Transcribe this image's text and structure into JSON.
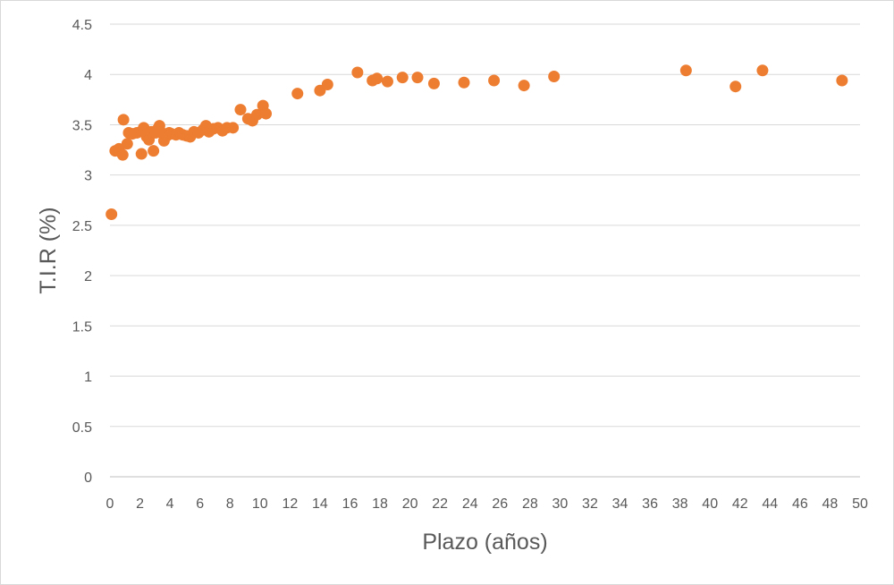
{
  "chart_data": {
    "type": "scatter",
    "xlabel": "Plazo (años)",
    "ylabel": "T.I.R (%)",
    "xlim": [
      0,
      50
    ],
    "ylim": [
      0,
      4.5
    ],
    "x_ticks": [
      "0",
      "2",
      "4",
      "6",
      "8",
      "10",
      "12",
      "14",
      "16",
      "18",
      "20",
      "22",
      "24",
      "26",
      "28",
      "30",
      "32",
      "34",
      "36",
      "38",
      "40",
      "42",
      "44",
      "46",
      "48",
      "50"
    ],
    "y_ticks": [
      "0",
      "0.5",
      "1",
      "1.5",
      "2",
      "2.5",
      "3",
      "3.5",
      "4",
      "4.5"
    ],
    "grid": "horizontal",
    "legend": "none",
    "series": [
      {
        "color": "#ED7D31",
        "points": [
          [
            0.1,
            2.61
          ],
          [
            0.35,
            3.24
          ],
          [
            0.6,
            3.26
          ],
          [
            0.85,
            3.2
          ],
          [
            0.9,
            3.55
          ],
          [
            1.15,
            3.31
          ],
          [
            1.25,
            3.42
          ],
          [
            1.5,
            3.41
          ],
          [
            1.8,
            3.42
          ],
          [
            2.1,
            3.21
          ],
          [
            2.15,
            3.44
          ],
          [
            2.25,
            3.47
          ],
          [
            2.45,
            3.38
          ],
          [
            2.6,
            3.35
          ],
          [
            2.75,
            3.43
          ],
          [
            2.9,
            3.24
          ],
          [
            3.05,
            3.42
          ],
          [
            3.2,
            3.46
          ],
          [
            3.3,
            3.49
          ],
          [
            3.45,
            3.42
          ],
          [
            3.6,
            3.34
          ],
          [
            3.8,
            3.39
          ],
          [
            3.95,
            3.42
          ],
          [
            4.1,
            3.41
          ],
          [
            4.4,
            3.4
          ],
          [
            4.6,
            3.42
          ],
          [
            4.85,
            3.4
          ],
          [
            5.1,
            3.39
          ],
          [
            5.35,
            3.38
          ],
          [
            5.6,
            3.43
          ],
          [
            5.9,
            3.42
          ],
          [
            6.2,
            3.45
          ],
          [
            6.4,
            3.49
          ],
          [
            6.6,
            3.43
          ],
          [
            6.9,
            3.46
          ],
          [
            7.2,
            3.47
          ],
          [
            7.5,
            3.44
          ],
          [
            7.8,
            3.47
          ],
          [
            8.2,
            3.47
          ],
          [
            8.7,
            3.65
          ],
          [
            9.2,
            3.56
          ],
          [
            9.5,
            3.54
          ],
          [
            9.8,
            3.6
          ],
          [
            10.2,
            3.69
          ],
          [
            10.4,
            3.61
          ],
          [
            12.5,
            3.81
          ],
          [
            14.0,
            3.84
          ],
          [
            14.5,
            3.9
          ],
          [
            16.5,
            4.02
          ],
          [
            17.5,
            3.94
          ],
          [
            17.8,
            3.96
          ],
          [
            18.5,
            3.93
          ],
          [
            19.5,
            3.97
          ],
          [
            20.5,
            3.97
          ],
          [
            21.6,
            3.91
          ],
          [
            23.6,
            3.92
          ],
          [
            25.6,
            3.94
          ],
          [
            27.6,
            3.89
          ],
          [
            29.6,
            3.98
          ],
          [
            38.4,
            4.04
          ],
          [
            41.7,
            3.88
          ],
          [
            43.5,
            4.04
          ],
          [
            48.8,
            3.94
          ]
        ]
      }
    ]
  }
}
